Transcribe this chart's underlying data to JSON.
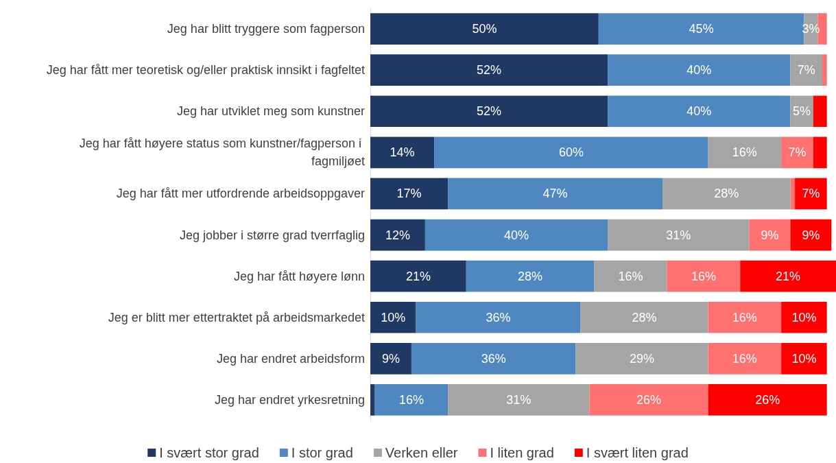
{
  "chart_data": {
    "type": "bar",
    "orientation": "horizontal",
    "stacked": true,
    "categories": [
      "Jeg har blitt tryggere som fagperson",
      "Jeg har fått mer teoretisk og/eller praktisk innsikt i fagfeltet",
      "Jeg har utviklet meg som kunstner",
      "Jeg har fått høyere status som kunstner/fagperson i fagmiljøet",
      "Jeg har fått mer utfordrende arbeidsoppgaver",
      "Jeg jobber i større grad tverrfaglig",
      "Jeg har fått høyere lønn",
      "Jeg er blitt mer ettertraktet på arbeidsmarkedet",
      "Jeg har endret arbeidsform",
      "Jeg har endret yrkesretning"
    ],
    "series": [
      {
        "name": "I svært stor grad",
        "color": "#1f3864",
        "values": [
          50,
          52,
          52,
          14,
          17,
          12,
          21,
          10,
          9,
          1
        ],
        "value_labels": [
          "50%",
          "52%",
          "52%",
          "14%",
          "17%",
          "12%",
          "21%",
          "10%",
          "9%",
          null
        ]
      },
      {
        "name": "I stor grad",
        "color": "#4f88c0",
        "values": [
          45,
          40,
          40,
          60,
          47,
          40,
          28,
          36,
          36,
          16
        ],
        "value_labels": [
          "45%",
          "40%",
          "40%",
          "60%",
          "47%",
          "40%",
          "28%",
          "36%",
          "36%",
          "16%"
        ]
      },
      {
        "name": "Verken eller",
        "color": "#a5a5a5",
        "values": [
          3,
          7,
          5,
          16,
          28,
          31,
          16,
          28,
          29,
          31
        ],
        "value_labels": [
          "3%",
          "7%",
          "5%",
          "16%",
          "28%",
          "31%",
          "16%",
          "28%",
          "29%",
          "31%"
        ]
      },
      {
        "name": "I liten grad",
        "color": "#ff7171",
        "values": [
          2,
          1,
          null,
          7,
          1,
          9,
          16,
          16,
          16,
          26
        ],
        "value_labels": [
          null,
          null,
          null,
          "7%",
          null,
          "9%",
          "16%",
          "16%",
          "16%",
          "26%"
        ]
      },
      {
        "name": "I svært liten grad",
        "color": "#ff0000",
        "values": [
          null,
          null,
          3,
          3,
          7,
          9,
          21,
          10,
          10,
          26
        ],
        "value_labels": [
          null,
          null,
          null,
          null,
          "7%",
          "9%",
          "21%",
          "10%",
          "10%",
          "26%"
        ]
      }
    ],
    "xlim": [
      0,
      102
    ],
    "tick_labels": "y",
    "grid": false,
    "legend": "bottom"
  }
}
